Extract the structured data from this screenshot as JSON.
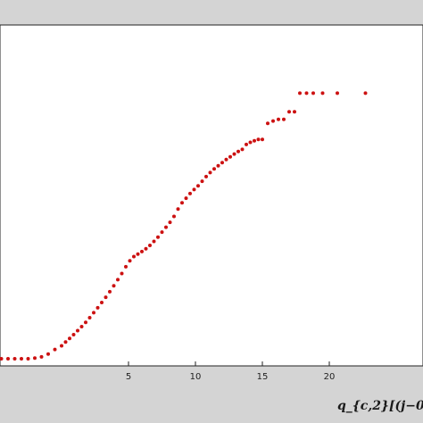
{
  "chart_data": {
    "type": "scatter",
    "title": "",
    "xlabel": "q_{c,2}[(j−0",
    "ylabel": "",
    "xlim": [
      -4.6,
      27
    ],
    "xticks": [
      5,
      10,
      15,
      20
    ],
    "ylim": [
      0,
      1
    ],
    "grid": false,
    "legend": "none",
    "marker_color": "#cc1111",
    "series": [
      {
        "x": [
          -4.5,
          -4.0,
          -3.5,
          -3.0,
          -2.5,
          -2.0,
          -1.5,
          -1.0,
          -0.5,
          0.0,
          0.3,
          0.6,
          0.9,
          1.2,
          1.5,
          1.8,
          2.1,
          2.4,
          2.7,
          3.0,
          3.3,
          3.6,
          3.9,
          4.2,
          4.5,
          4.8,
          5.1,
          5.4,
          5.7,
          6.0,
          6.3,
          6.6,
          6.9,
          7.2,
          7.5,
          7.8,
          8.1,
          8.4,
          8.7,
          9.0,
          9.3,
          9.6,
          9.9,
          10.2,
          10.5,
          10.8,
          11.1,
          11.4,
          11.7,
          12.0,
          12.3,
          12.6,
          12.9,
          13.2,
          13.5,
          13.8,
          14.1,
          14.4,
          14.7,
          15.0,
          15.4,
          15.8,
          16.2,
          16.6,
          17.0,
          17.4,
          17.8,
          18.3,
          18.8,
          19.5,
          20.6,
          22.7
        ],
        "y": [
          0.0,
          0.0,
          0.0,
          0.0,
          0.0,
          0.002,
          0.006,
          0.015,
          0.03,
          0.042,
          0.054,
          0.066,
          0.078,
          0.091,
          0.104,
          0.118,
          0.133,
          0.149,
          0.165,
          0.182,
          0.199,
          0.217,
          0.236,
          0.256,
          0.276,
          0.298,
          0.317,
          0.331,
          0.339,
          0.347,
          0.356,
          0.367,
          0.38,
          0.394,
          0.41,
          0.426,
          0.442,
          0.461,
          0.485,
          0.505,
          0.52,
          0.535,
          0.548,
          0.56,
          0.575,
          0.59,
          0.603,
          0.615,
          0.625,
          0.635,
          0.645,
          0.654,
          0.663,
          0.671,
          0.678,
          0.694,
          0.701,
          0.706,
          0.71,
          0.71,
          0.762,
          0.77,
          0.775,
          0.775,
          0.8,
          0.8,
          0.86,
          0.86,
          0.86,
          0.86,
          0.86,
          0.86
        ]
      }
    ]
  }
}
